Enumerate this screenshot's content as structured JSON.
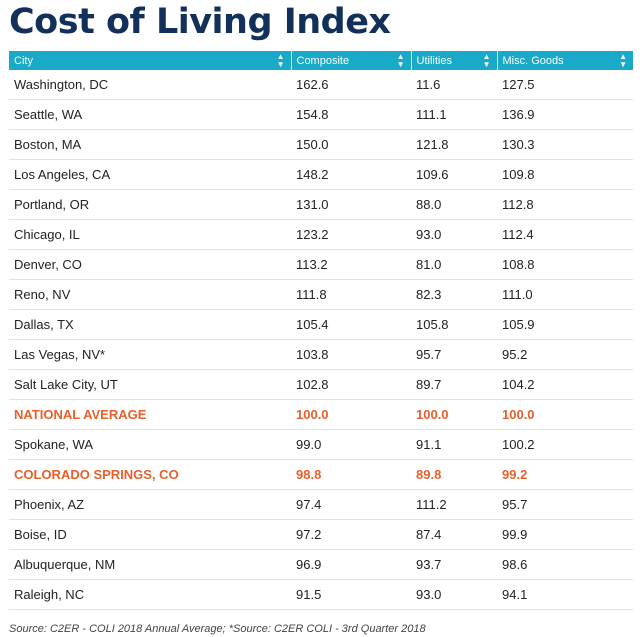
{
  "title": "Cost of Living Index",
  "table": {
    "headers": [
      "City",
      "Composite",
      "Utilities",
      "Misc. Goods"
    ],
    "rows": [
      {
        "city": "Washington, DC",
        "composite": "162.6",
        "utilities": "11.6",
        "misc": "127.5",
        "highlight": false
      },
      {
        "city": "Seattle, WA",
        "composite": "154.8",
        "utilities": "111.1",
        "misc": "136.9",
        "highlight": false
      },
      {
        "city": "Boston, MA",
        "composite": "150.0",
        "utilities": "121.8",
        "misc": "130.3",
        "highlight": false
      },
      {
        "city": "Los Angeles, CA",
        "composite": "148.2",
        "utilities": "109.6",
        "misc": "109.8",
        "highlight": false
      },
      {
        "city": "Portland, OR",
        "composite": "131.0",
        "utilities": "88.0",
        "misc": "112.8",
        "highlight": false
      },
      {
        "city": "Chicago, IL",
        "composite": "123.2",
        "utilities": "93.0",
        "misc": "112.4",
        "highlight": false
      },
      {
        "city": "Denver, CO",
        "composite": "113.2",
        "utilities": "81.0",
        "misc": "108.8",
        "highlight": false
      },
      {
        "city": "Reno, NV",
        "composite": "111.8",
        "utilities": "82.3",
        "misc": "111.0",
        "highlight": false
      },
      {
        "city": "Dallas, TX",
        "composite": "105.4",
        "utilities": "105.8",
        "misc": "105.9",
        "highlight": false
      },
      {
        "city": "Las Vegas, NV*",
        "composite": "103.8",
        "utilities": "95.7",
        "misc": "95.2",
        "highlight": false
      },
      {
        "city": "Salt Lake City, UT",
        "composite": "102.8",
        "utilities": "89.7",
        "misc": "104.2",
        "highlight": false
      },
      {
        "city": "NATIONAL AVERAGE",
        "composite": "100.0",
        "utilities": "100.0",
        "misc": "100.0",
        "highlight": true
      },
      {
        "city": "Spokane, WA",
        "composite": "99.0",
        "utilities": "91.1",
        "misc": "100.2",
        "highlight": false
      },
      {
        "city": "COLORADO SPRINGS, CO",
        "composite": "98.8",
        "utilities": "89.8",
        "misc": "99.2",
        "highlight": true
      },
      {
        "city": "Phoenix, AZ",
        "composite": "97.4",
        "utilities": "111.2",
        "misc": "95.7",
        "highlight": false
      },
      {
        "city": "Boise, ID",
        "composite": "97.2",
        "utilities": "87.4",
        "misc": "99.9",
        "highlight": false
      },
      {
        "city": "Albuquerque, NM",
        "composite": "96.9",
        "utilities": "93.7",
        "misc": "98.6",
        "highlight": false
      },
      {
        "city": "Raleigh, NC",
        "composite": "91.5",
        "utilities": "93.0",
        "misc": "94.1",
        "highlight": false
      }
    ]
  },
  "source": "Source: C2ER - COLI 2018 Annual Average; *Source: C2ER COLI - 3rd Quarter 2018",
  "colors": {
    "title": "#12305a",
    "header_bg": "#19a9c9",
    "highlight": "#e8602c"
  },
  "icons": {
    "sort": "sort-icon"
  }
}
